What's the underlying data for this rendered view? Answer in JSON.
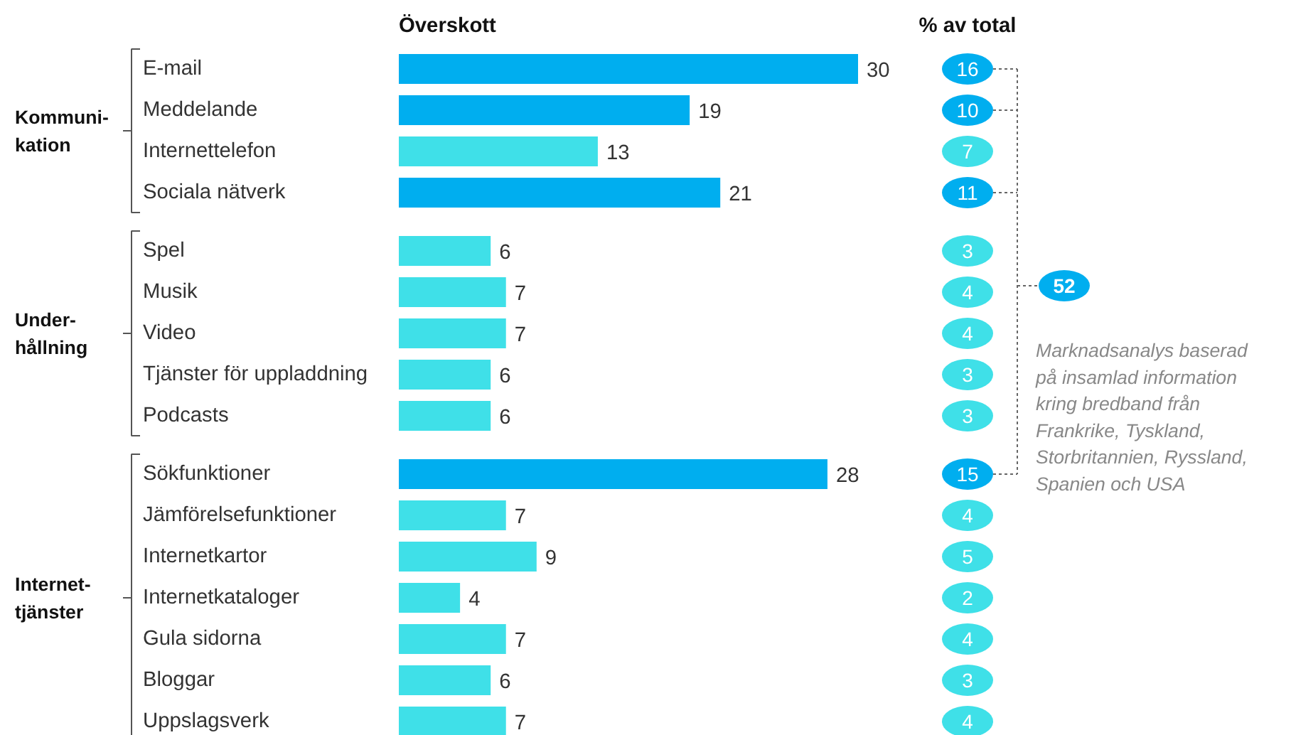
{
  "chart_data": [
    {
      "type": "bar",
      "orientation": "horizontal",
      "title": "Överskott",
      "categories": [
        "E-mail",
        "Meddelande",
        "Internettelefon",
        "Sociala nätverk",
        "Spel",
        "Musik",
        "Video",
        "Tjänster för uppladdning",
        "Podcasts",
        "Sökfunktioner",
        "Jämförelsefunktioner",
        "Internetkartor",
        "Internetkataloger",
        "Gula sidorna",
        "Bloggar",
        "Uppslagsverk"
      ],
      "values": [
        30,
        19,
        13,
        21,
        6,
        7,
        7,
        6,
        6,
        28,
        7,
        9,
        4,
        7,
        6,
        7
      ],
      "colors": [
        "#00aeef",
        "#00aeef",
        "#3fe0e8",
        "#00aeef",
        "#3fe0e8",
        "#3fe0e8",
        "#3fe0e8",
        "#3fe0e8",
        "#3fe0e8",
        "#00aeef",
        "#3fe0e8",
        "#3fe0e8",
        "#3fe0e8",
        "#3fe0e8",
        "#3fe0e8",
        "#3fe0e8"
      ],
      "data_labels": true,
      "annotations": [
        "Kommuni-\nkation",
        "Under-\nhållning",
        "Internet-\ntjänster"
      ]
    },
    {
      "type": "other",
      "title": "% av total",
      "categories": [
        null,
        null,
        null,
        null,
        null,
        null,
        null,
        null,
        null,
        null,
        null,
        null,
        null,
        null,
        null,
        null
      ],
      "values": [
        16,
        10,
        7,
        11,
        3,
        4,
        4,
        3,
        3,
        15,
        4,
        5,
        2,
        4,
        3,
        4
      ],
      "colors": [
        "#00aeef",
        "#00aeef",
        "#3fe0e8",
        "#00aeef",
        "#3fe0e8",
        "#3fe0e8",
        "#3fe0e8",
        "#3fe0e8",
        "#3fe0e8",
        "#00aeef",
        "#3fe0e8",
        "#3fe0e8",
        "#3fe0e8",
        "#3fe0e8",
        "#3fe0e8",
        "#3fe0e8"
      ],
      "data_labels": true,
      "annotations": [
        "52",
        "Marknadsanalys baserad\npå insamlad information\nkring bredband från\nFrankrike, Tyskland,\nStorbritannien, Ryssland,\nSpanien och USA"
      ]
    }
  ]
}
